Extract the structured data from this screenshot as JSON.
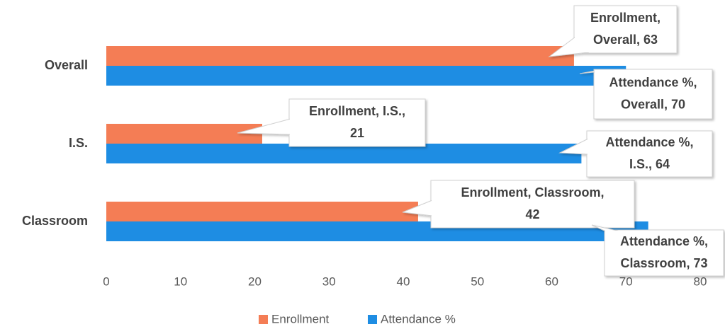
{
  "chart_data": {
    "type": "hbar",
    "categories": [
      "Overall",
      "I.S.",
      "Classroom"
    ],
    "series": [
      {
        "name": "Enrollment",
        "color": "#f47d55",
        "values": [
          63,
          21,
          42
        ],
        "value_labels": [
          [
            "Enrollment,",
            "Overall, 63"
          ],
          [
            "Enrollment, I.S.,",
            "21"
          ],
          [
            "Enrollment, Classroom,",
            "42"
          ]
        ]
      },
      {
        "name": "Attendance %",
        "color": "#1e8de3",
        "values": [
          70,
          64,
          73
        ],
        "value_labels": [
          [
            "Attendance %,",
            "Overall, 70"
          ],
          [
            "Attendance %,",
            "I.S., 64"
          ],
          [
            "Attendance %,",
            "Classroom, 73"
          ]
        ]
      }
    ],
    "xlim": [
      0,
      80
    ],
    "xticks": [
      0,
      10,
      20,
      30,
      40,
      50,
      60,
      70,
      80
    ],
    "grid": false,
    "legend": "bottom"
  }
}
